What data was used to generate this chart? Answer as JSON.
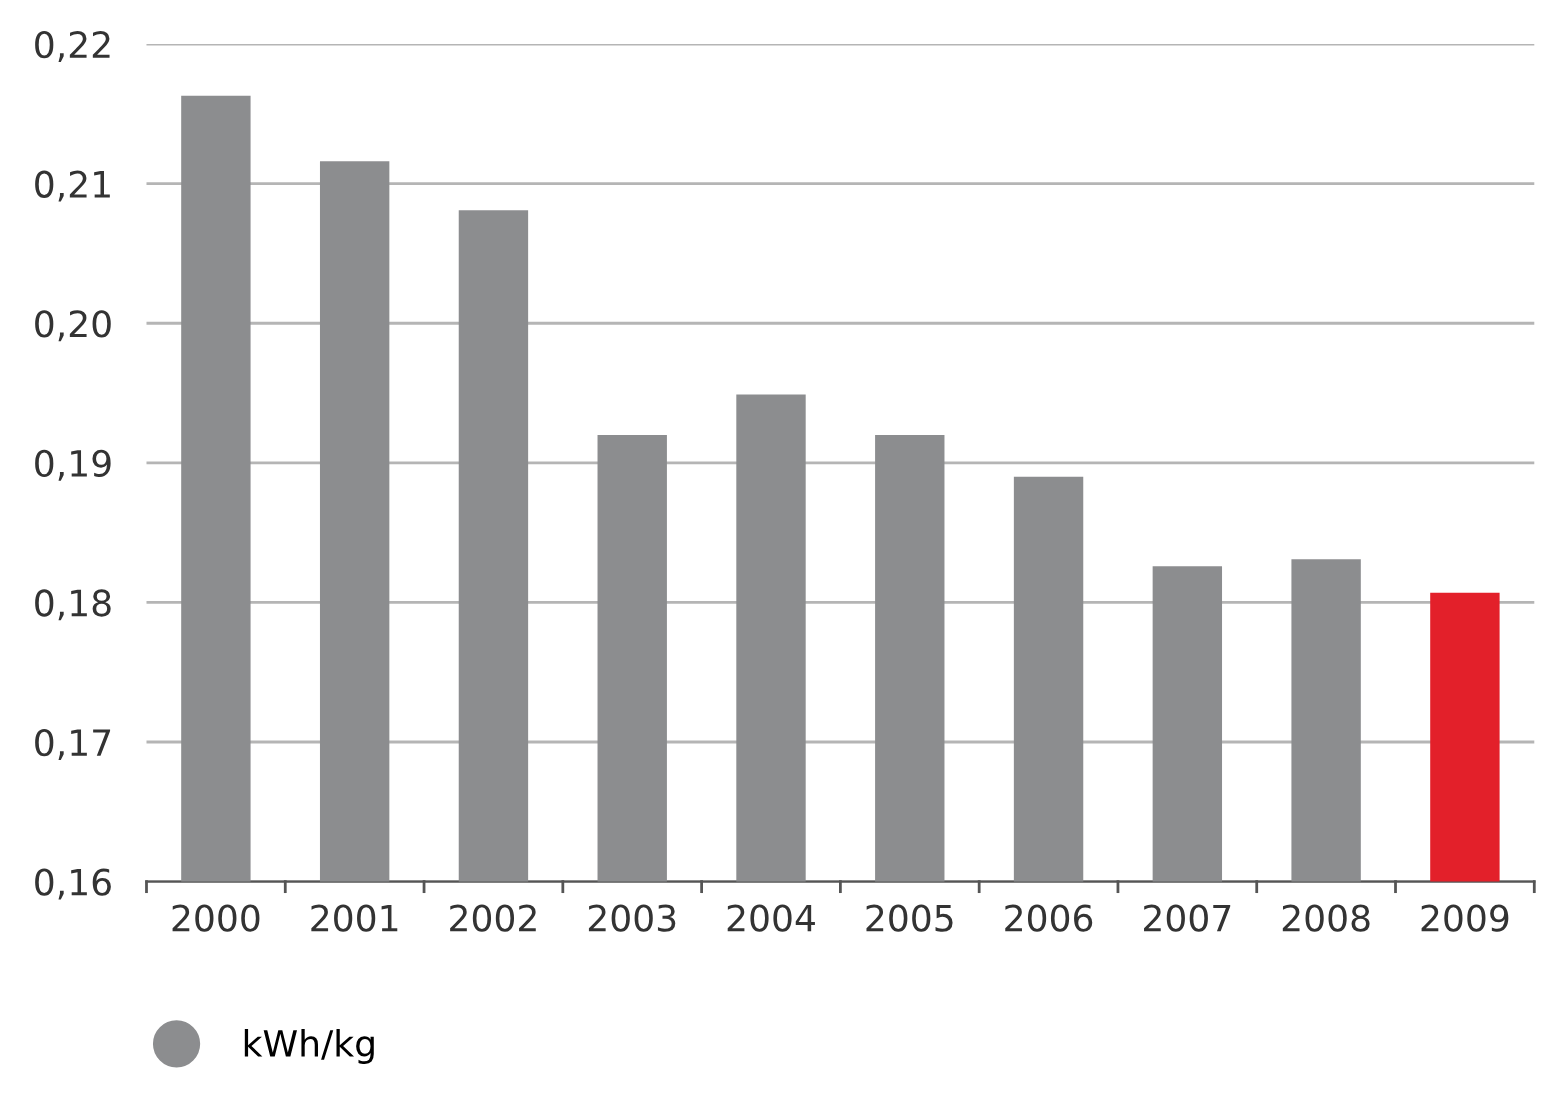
{
  "chart_data": {
    "type": "bar",
    "categories": [
      "2000",
      "2001",
      "2002",
      "2003",
      "2004",
      "2005",
      "2006",
      "2007",
      "2008",
      "2009"
    ],
    "series": [
      {
        "name": "kWh/kg",
        "color": "#8c8d8f",
        "values": [
          0.2163,
          0.2116,
          0.2081,
          0.192,
          0.1949,
          0.192,
          0.189,
          0.1826,
          0.1831,
          0.1807
        ],
        "colors": [
          "#8c8d8f",
          "#8c8d8f",
          "#8c8d8f",
          "#8c8d8f",
          "#8c8d8f",
          "#8c8d8f",
          "#8c8d8f",
          "#8c8d8f",
          "#8c8d8f",
          "#e3202a"
        ]
      }
    ],
    "ylim": [
      0.16,
      0.22
    ],
    "yticks": [
      {
        "value": 0.16,
        "label": "0,16"
      },
      {
        "value": 0.17,
        "label": "0,17"
      },
      {
        "value": 0.18,
        "label": "0,18"
      },
      {
        "value": 0.19,
        "label": "0,19"
      },
      {
        "value": 0.2,
        "label": "0,20"
      },
      {
        "value": 0.21,
        "label": "0,21"
      },
      {
        "value": 0.22,
        "label": "0,22"
      }
    ],
    "grid": "y",
    "legend": "bottom left"
  }
}
